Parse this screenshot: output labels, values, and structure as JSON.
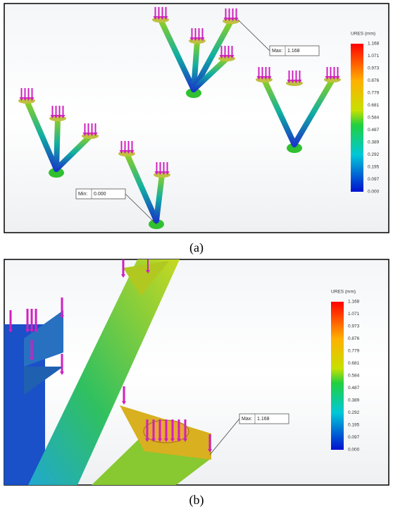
{
  "panels": [
    {
      "caption": "(a)",
      "legend": {
        "title": "URES (mm)",
        "labels": [
          "1.168",
          "1.071",
          "0.973",
          "0.876",
          "0.779",
          "0.681",
          "0.584",
          "0.487",
          "0.389",
          "0.292",
          "0.195",
          "0.097",
          "0.000"
        ]
      },
      "annotations": [
        {
          "label": "Max:",
          "value": "1.168"
        },
        {
          "label": "Min:",
          "value": "0.000"
        }
      ]
    },
    {
      "caption": "(b)",
      "legend": {
        "title": "URES (mm)",
        "labels": [
          "1.168",
          "1.071",
          "0.973",
          "0.876",
          "0.779",
          "0.681",
          "0.584",
          "0.487",
          "0.389",
          "0.292",
          "0.195",
          "0.097",
          "0.000"
        ]
      },
      "annotations": [
        {
          "label": "Max:",
          "value": "1.168"
        }
      ]
    }
  ]
}
